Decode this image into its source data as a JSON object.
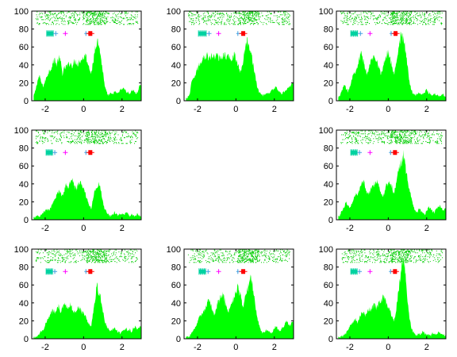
{
  "colors": {
    "histogram": "#00ff00",
    "raster": "#00cc00",
    "marker_teal": "#00d2a0",
    "marker_blue": "#40a0e0",
    "marker_magenta": "#ff00ff",
    "marker_red": "#ff0000",
    "axis": "#000000"
  },
  "chart_data": [
    {
      "type": "area",
      "panel": "1",
      "xlim": [
        -2.7,
        3.0
      ],
      "ylim": [
        0,
        100
      ],
      "xticks": [
        "-2",
        "0",
        "2"
      ],
      "yticks": [
        "0",
        "20",
        "40",
        "60",
        "80",
        "100"
      ],
      "grid": false,
      "x": [
        -2.6,
        -2.5,
        -2.4,
        -2.3,
        -2.2,
        -2.1,
        -2.0,
        -1.9,
        -1.8,
        -1.7,
        -1.6,
        -1.5,
        -1.4,
        -1.3,
        -1.2,
        -1.1,
        -1.0,
        -0.9,
        -0.8,
        -0.7,
        -0.6,
        -0.5,
        -0.4,
        -0.3,
        -0.2,
        -0.1,
        0.0,
        0.1,
        0.2,
        0.3,
        0.4,
        0.5,
        0.6,
        0.7,
        0.8,
        0.9,
        1.0,
        1.1,
        1.2,
        1.3,
        1.4,
        1.5,
        1.6,
        1.7,
        1.8,
        1.9,
        2.0,
        2.1,
        2.2,
        2.3,
        2.4,
        2.5,
        2.6,
        2.7,
        2.8,
        2.9,
        3.0
      ],
      "values": [
        5,
        12,
        22,
        28,
        20,
        16,
        22,
        28,
        33,
        36,
        42,
        46,
        40,
        48,
        44,
        30,
        36,
        38,
        40,
        42,
        39,
        43,
        44,
        41,
        45,
        46,
        48,
        52,
        43,
        38,
        30,
        42,
        60,
        68,
        62,
        48,
        33,
        16,
        9,
        6,
        8,
        7,
        10,
        9,
        8,
        12,
        13,
        14,
        11,
        9,
        8,
        11,
        12,
        8,
        9,
        16,
        18
      ],
      "raster_band": [
        85,
        100
      ],
      "markers": {
        "teal_x": [
          -1.92,
          -1.58
        ],
        "blue_x": -1.45,
        "magenta_x": -0.95,
        "cyan_x": 0.12,
        "red_x": 0.35,
        "level": 75
      }
    },
    {
      "type": "area",
      "panel": "2",
      "xlim": [
        -2.7,
        3.0
      ],
      "ylim": [
        0,
        100
      ],
      "xticks": [
        "-2",
        "0",
        "2"
      ],
      "yticks": [
        "0",
        "20",
        "40",
        "60",
        "80",
        "100"
      ],
      "grid": false,
      "x": [
        -2.6,
        -2.5,
        -2.4,
        -2.3,
        -2.2,
        -2.1,
        -2.0,
        -1.9,
        -1.8,
        -1.7,
        -1.6,
        -1.5,
        -1.4,
        -1.3,
        -1.2,
        -1.1,
        -1.0,
        -0.9,
        -0.8,
        -0.7,
        -0.6,
        -0.5,
        -0.4,
        -0.3,
        -0.2,
        -0.1,
        0.0,
        0.1,
        0.2,
        0.3,
        0.4,
        0.5,
        0.6,
        0.7,
        0.8,
        0.9,
        1.0,
        1.1,
        1.2,
        1.3,
        1.4,
        1.5,
        1.6,
        1.7,
        1.8,
        1.9,
        2.0,
        2.1,
        2.2,
        2.3,
        2.4,
        2.5,
        2.6,
        2.7,
        2.8,
        2.9,
        3.0
      ],
      "values": [
        2,
        4,
        8,
        22,
        24,
        30,
        36,
        40,
        44,
        50,
        48,
        52,
        46,
        50,
        48,
        50,
        52,
        46,
        50,
        48,
        52,
        47,
        50,
        48,
        46,
        52,
        48,
        40,
        32,
        36,
        48,
        62,
        66,
        60,
        55,
        40,
        28,
        16,
        10,
        8,
        6,
        7,
        9,
        8,
        10,
        12,
        14,
        16,
        11,
        9,
        8,
        10,
        12,
        14,
        16,
        18,
        20
      ],
      "raster_band": [
        85,
        100
      ],
      "markers": {
        "teal_x": [
          -1.95,
          -1.55
        ],
        "blue_x": -1.4,
        "magenta_x": -0.9,
        "cyan_x": 0.1,
        "red_x": 0.38,
        "level": 75
      }
    },
    {
      "type": "area",
      "panel": "3",
      "xlim": [
        -2.7,
        3.0
      ],
      "ylim": [
        0,
        100
      ],
      "xticks": [
        "-2",
        "0",
        "2"
      ],
      "yticks": [
        "0",
        "20",
        "40",
        "60",
        "80",
        "100"
      ],
      "grid": false,
      "x": [
        -2.6,
        -2.5,
        -2.4,
        -2.3,
        -2.2,
        -2.1,
        -2.0,
        -1.9,
        -1.8,
        -1.7,
        -1.6,
        -1.5,
        -1.4,
        -1.3,
        -1.2,
        -1.1,
        -1.0,
        -0.9,
        -0.8,
        -0.7,
        -0.6,
        -0.5,
        -0.4,
        -0.3,
        -0.2,
        -0.1,
        0.0,
        0.1,
        0.2,
        0.3,
        0.4,
        0.5,
        0.6,
        0.7,
        0.8,
        0.9,
        1.0,
        1.1,
        1.2,
        1.3,
        1.4,
        1.5,
        1.6,
        1.7,
        1.8,
        1.9,
        2.0,
        2.1,
        2.2,
        2.3,
        2.4,
        2.5,
        2.6,
        2.7,
        2.8,
        2.9,
        3.0
      ],
      "values": [
        3,
        6,
        12,
        18,
        14,
        10,
        16,
        24,
        30,
        34,
        40,
        48,
        52,
        44,
        36,
        30,
        38,
        44,
        48,
        50,
        46,
        38,
        30,
        34,
        44,
        50,
        55,
        48,
        38,
        30,
        40,
        55,
        68,
        75,
        66,
        56,
        40,
        22,
        12,
        8,
        6,
        8,
        9,
        7,
        8,
        10,
        12,
        9,
        8,
        6,
        8,
        7,
        6,
        5,
        8,
        6,
        4
      ],
      "raster_band": [
        85,
        100
      ],
      "markers": {
        "teal_x": [
          -1.95,
          -1.6
        ],
        "blue_x": -1.45,
        "magenta_x": -0.95,
        "cyan_x": 0.15,
        "red_x": 0.38,
        "level": 75
      }
    },
    {
      "type": "area",
      "panel": "4",
      "xlim": [
        -2.7,
        3.0
      ],
      "ylim": [
        0,
        100
      ],
      "xticks": [
        "-2",
        "0",
        "2"
      ],
      "yticks": [
        "0",
        "20",
        "40",
        "60",
        "80",
        "100"
      ],
      "grid": false,
      "x": [
        -2.6,
        -2.5,
        -2.4,
        -2.3,
        -2.2,
        -2.1,
        -2.0,
        -1.9,
        -1.8,
        -1.7,
        -1.6,
        -1.5,
        -1.4,
        -1.3,
        -1.2,
        -1.1,
        -1.0,
        -0.9,
        -0.8,
        -0.7,
        -0.6,
        -0.5,
        -0.4,
        -0.3,
        -0.2,
        -0.1,
        0.0,
        0.1,
        0.2,
        0.3,
        0.4,
        0.5,
        0.6,
        0.7,
        0.8,
        0.9,
        1.0,
        1.1,
        1.2,
        1.3,
        1.4,
        1.5,
        1.6,
        1.7,
        1.8,
        1.9,
        2.0,
        2.1,
        2.2,
        2.3,
        2.4,
        2.5,
        2.6,
        2.7,
        2.8,
        2.9,
        3.0
      ],
      "values": [
        2,
        3,
        5,
        4,
        6,
        8,
        10,
        12,
        10,
        14,
        18,
        22,
        28,
        32,
        30,
        26,
        34,
        40,
        36,
        44,
        48,
        40,
        34,
        38,
        42,
        40,
        34,
        28,
        22,
        16,
        12,
        24,
        34,
        38,
        40,
        32,
        20,
        12,
        8,
        6,
        4,
        6,
        8,
        6,
        5,
        7,
        6,
        5,
        8,
        7,
        4,
        6,
        5,
        4,
        6,
        5,
        3
      ],
      "raster_band": [
        85,
        100
      ],
      "markers": {
        "teal_x": [
          -1.95,
          -1.62
        ],
        "blue_x": -1.5,
        "magenta_x": -0.95,
        "cyan_x": 0.12,
        "red_x": 0.35,
        "level": 75
      }
    },
    {
      "type": "area",
      "panel": "6",
      "xlim": [
        -2.7,
        3.0
      ],
      "ylim": [
        0,
        100
      ],
      "xticks": [
        "-2",
        "0",
        "2"
      ],
      "yticks": [
        "0",
        "20",
        "40",
        "60",
        "80",
        "100"
      ],
      "grid": false,
      "x": [
        -2.6,
        -2.5,
        -2.4,
        -2.3,
        -2.2,
        -2.1,
        -2.0,
        -1.9,
        -1.8,
        -1.7,
        -1.6,
        -1.5,
        -1.4,
        -1.3,
        -1.2,
        -1.1,
        -1.0,
        -0.9,
        -0.8,
        -0.7,
        -0.6,
        -0.5,
        -0.4,
        -0.3,
        -0.2,
        -0.1,
        0.0,
        0.1,
        0.2,
        0.3,
        0.4,
        0.5,
        0.6,
        0.7,
        0.8,
        0.9,
        1.0,
        1.1,
        1.2,
        1.3,
        1.4,
        1.5,
        1.6,
        1.7,
        1.8,
        1.9,
        2.0,
        2.1,
        2.2,
        2.3,
        2.4,
        2.5,
        2.6,
        2.7,
        2.8,
        2.9,
        3.0
      ],
      "values": [
        3,
        6,
        10,
        14,
        20,
        16,
        12,
        18,
        24,
        28,
        26,
        32,
        40,
        44,
        36,
        30,
        28,
        34,
        38,
        42,
        44,
        40,
        32,
        26,
        30,
        38,
        40,
        42,
        36,
        30,
        38,
        52,
        60,
        66,
        72,
        58,
        44,
        34,
        24,
        16,
        10,
        8,
        12,
        10,
        8,
        6,
        10,
        14,
        12,
        10,
        8,
        12,
        14,
        16,
        12,
        10,
        14
      ],
      "raster_band": [
        85,
        100
      ],
      "markers": {
        "teal_x": [
          -1.95,
          -1.62
        ],
        "blue_x": -1.5,
        "magenta_x": -0.95,
        "cyan_x": 0.12,
        "red_x": 0.35,
        "level": 75
      }
    },
    {
      "type": "area",
      "panel": "7",
      "xlim": [
        -2.7,
        3.0
      ],
      "ylim": [
        0,
        100
      ],
      "xticks": [
        "-2",
        "0",
        "2"
      ],
      "yticks": [
        "0",
        "20",
        "40",
        "60",
        "80",
        "100"
      ],
      "grid": false,
      "x": [
        -2.6,
        -2.5,
        -2.4,
        -2.3,
        -2.2,
        -2.1,
        -2.0,
        -1.9,
        -1.8,
        -1.7,
        -1.6,
        -1.5,
        -1.4,
        -1.3,
        -1.2,
        -1.1,
        -1.0,
        -0.9,
        -0.8,
        -0.7,
        -0.6,
        -0.5,
        -0.4,
        -0.3,
        -0.2,
        -0.1,
        0.0,
        0.1,
        0.2,
        0.3,
        0.4,
        0.5,
        0.6,
        0.7,
        0.8,
        0.9,
        1.0,
        1.1,
        1.2,
        1.3,
        1.4,
        1.5,
        1.6,
        1.7,
        1.8,
        1.9,
        2.0,
        2.1,
        2.2,
        2.3,
        2.4,
        2.5,
        2.6,
        2.7,
        2.8,
        2.9,
        3.0
      ],
      "values": [
        1,
        2,
        4,
        6,
        8,
        10,
        16,
        20,
        24,
        28,
        32,
        30,
        34,
        36,
        30,
        34,
        38,
        36,
        32,
        38,
        34,
        30,
        32,
        36,
        34,
        30,
        28,
        26,
        20,
        16,
        14,
        30,
        46,
        58,
        52,
        44,
        32,
        20,
        14,
        10,
        8,
        10,
        12,
        10,
        8,
        6,
        8,
        10,
        12,
        9,
        10,
        8,
        12,
        14,
        10,
        12,
        14
      ],
      "raster_band": [
        85,
        100
      ],
      "markers": {
        "teal_x": [
          -1.95,
          -1.62
        ],
        "blue_x": -1.5,
        "magenta_x": -0.95,
        "cyan_x": 0.12,
        "red_x": 0.35,
        "level": 75
      }
    },
    {
      "type": "area",
      "panel": "8",
      "xlim": [
        -2.7,
        3.0
      ],
      "ylim": [
        0,
        100
      ],
      "xticks": [
        "-2",
        "0",
        "2"
      ],
      "yticks": [
        "0",
        "20",
        "40",
        "60",
        "80",
        "100"
      ],
      "grid": false,
      "x": [
        -2.6,
        -2.5,
        -2.4,
        -2.3,
        -2.2,
        -2.1,
        -2.0,
        -1.9,
        -1.8,
        -1.7,
        -1.6,
        -1.5,
        -1.4,
        -1.3,
        -1.2,
        -1.1,
        -1.0,
        -0.9,
        -0.8,
        -0.7,
        -0.6,
        -0.5,
        -0.4,
        -0.3,
        -0.2,
        -0.1,
        0.0,
        0.1,
        0.2,
        0.3,
        0.4,
        0.5,
        0.6,
        0.7,
        0.8,
        0.9,
        1.0,
        1.1,
        1.2,
        1.3,
        1.4,
        1.5,
        1.6,
        1.7,
        1.8,
        1.9,
        2.0,
        2.1,
        2.2,
        2.3,
        2.4,
        2.5,
        2.6,
        2.7,
        2.8,
        2.9,
        3.0
      ],
      "values": [
        1,
        2,
        3,
        6,
        10,
        14,
        18,
        24,
        26,
        30,
        34,
        40,
        44,
        38,
        30,
        28,
        36,
        42,
        46,
        50,
        44,
        36,
        30,
        34,
        40,
        46,
        52,
        58,
        50,
        42,
        34,
        48,
        56,
        62,
        68,
        54,
        38,
        24,
        16,
        10,
        6,
        8,
        10,
        8,
        6,
        8,
        12,
        14,
        10,
        8,
        12,
        14,
        20,
        18,
        14,
        18,
        22
      ],
      "raster_band": [
        85,
        100
      ],
      "markers": {
        "teal_x": [
          -1.92,
          -1.58
        ],
        "blue_x": -1.45,
        "magenta_x": -0.9,
        "cyan_x": 0.1,
        "red_x": 0.38,
        "level": 75
      }
    },
    {
      "type": "area",
      "panel": "9",
      "xlim": [
        -2.7,
        3.0
      ],
      "ylim": [
        0,
        100
      ],
      "xticks": [
        "-2",
        "0",
        "2"
      ],
      "yticks": [
        "0",
        "20",
        "40",
        "60",
        "80",
        "100"
      ],
      "grid": false,
      "x": [
        -2.6,
        -2.5,
        -2.4,
        -2.3,
        -2.2,
        -2.1,
        -2.0,
        -1.9,
        -1.8,
        -1.7,
        -1.6,
        -1.5,
        -1.4,
        -1.3,
        -1.2,
        -1.1,
        -1.0,
        -0.9,
        -0.8,
        -0.7,
        -0.6,
        -0.5,
        -0.4,
        -0.3,
        -0.2,
        -0.1,
        0.0,
        0.1,
        0.2,
        0.3,
        0.4,
        0.5,
        0.6,
        0.7,
        0.8,
        0.9,
        1.0,
        1.1,
        1.2,
        1.3,
        1.4,
        1.5,
        1.6,
        1.7,
        1.8,
        1.9,
        2.0,
        2.1,
        2.2,
        2.3,
        2.4,
        2.5,
        2.6,
        2.7,
        2.8,
        2.9,
        3.0
      ],
      "values": [
        1,
        2,
        3,
        4,
        6,
        10,
        14,
        16,
        20,
        22,
        18,
        24,
        28,
        30,
        26,
        30,
        34,
        32,
        36,
        38,
        34,
        40,
        42,
        46,
        44,
        40,
        36,
        30,
        24,
        20,
        30,
        48,
        66,
        80,
        90,
        70,
        44,
        24,
        12,
        8,
        5,
        4,
        6,
        5,
        8,
        6,
        5,
        4,
        3,
        6,
        5,
        4,
        8,
        6,
        5,
        4,
        3
      ],
      "raster_band": [
        85,
        100
      ],
      "markers": {
        "teal_x": [
          -1.95,
          -1.62
        ],
        "blue_x": -1.5,
        "magenta_x": -0.95,
        "cyan_x": 0.12,
        "red_x": 0.35,
        "level": 75
      }
    }
  ]
}
